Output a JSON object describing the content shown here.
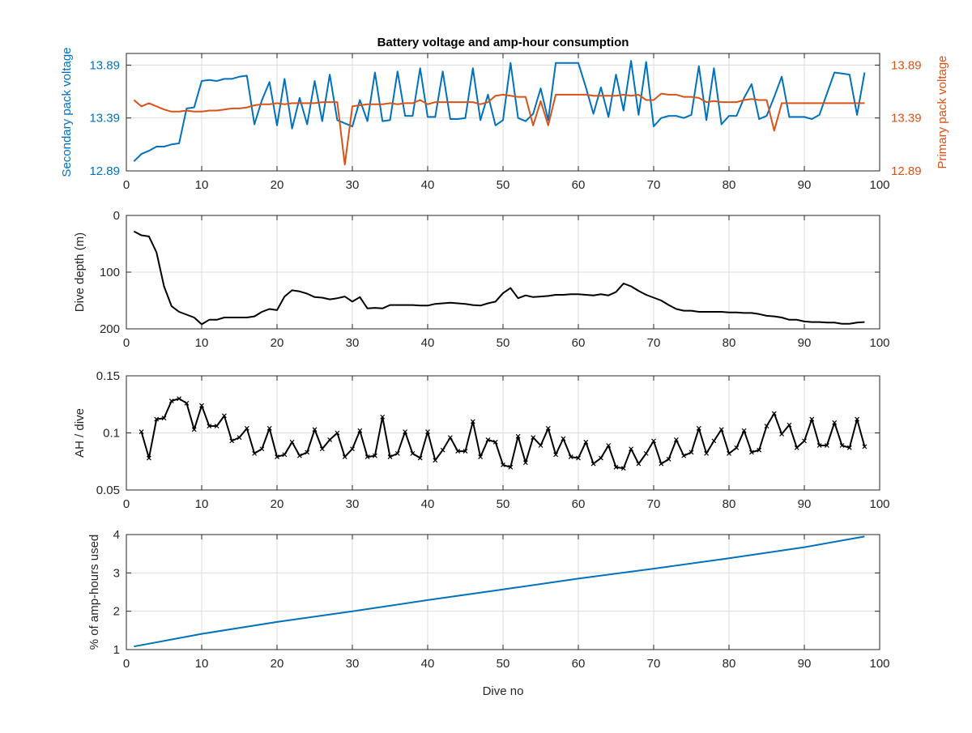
{
  "figure": {
    "title": "Battery voltage and amp-hour consumption"
  },
  "chart_data": [
    {
      "type": "line",
      "title": "Battery voltage and amp-hour consumption",
      "xlabel": "",
      "xlim": [
        0,
        100
      ],
      "xticks": [
        0,
        10,
        20,
        30,
        40,
        50,
        60,
        70,
        80,
        90,
        100
      ],
      "grid": true,
      "y_left": {
        "label": "Secondary pack voltage",
        "ylim": [
          12.89,
          14.0
        ],
        "ticks": [
          12.89,
          13.39,
          13.89
        ],
        "tick_labels": [
          "12.89",
          "13.39",
          "13.89"
        ],
        "color": "#0072BD"
      },
      "y_right": {
        "label": "Primary pack voltage",
        "ylim": [
          12.89,
          14.0
        ],
        "ticks": [
          12.89,
          13.39,
          13.89
        ],
        "tick_labels": [
          "12.89",
          "13.39",
          "13.89"
        ],
        "color": "#D95319"
      },
      "series": [
        {
          "axis": "left",
          "color": "#0072BD",
          "x": [
            1,
            2,
            3,
            4,
            5,
            6,
            7,
            8,
            9,
            10,
            11,
            12,
            13,
            14,
            15,
            16,
            17,
            18,
            19,
            20,
            21,
            22,
            23,
            24,
            25,
            26,
            27,
            28,
            29,
            30,
            31,
            32,
            33,
            34,
            35,
            36,
            37,
            38,
            39,
            40,
            41,
            42,
            43,
            44,
            45,
            46,
            47,
            48,
            49,
            50,
            51,
            52,
            53,
            54,
            55,
            56,
            57,
            58,
            59,
            60,
            61,
            62,
            63,
            64,
            65,
            66,
            67,
            68,
            69,
            70,
            71,
            72,
            73,
            74,
            75,
            76,
            77,
            78,
            79,
            80,
            81,
            82,
            83,
            84,
            85,
            86,
            87,
            88,
            89,
            90,
            91,
            92,
            93,
            94,
            95,
            96,
            97,
            98
          ],
          "y": [
            12.98,
            13.05,
            13.08,
            13.12,
            13.12,
            13.14,
            13.15,
            13.48,
            13.49,
            13.74,
            13.75,
            13.74,
            13.76,
            13.76,
            13.78,
            13.79,
            13.33,
            13.56,
            13.73,
            13.32,
            13.76,
            13.29,
            13.58,
            13.33,
            13.74,
            13.36,
            13.8,
            13.37,
            13.34,
            13.31,
            13.56,
            13.36,
            13.82,
            13.36,
            13.37,
            13.83,
            13.41,
            13.41,
            13.86,
            13.4,
            13.4,
            13.83,
            13.38,
            13.38,
            13.39,
            13.86,
            13.37,
            13.61,
            13.32,
            13.37,
            13.91,
            13.39,
            13.36,
            13.43,
            13.67,
            13.37,
            13.91,
            13.91,
            13.91,
            13.91,
            13.68,
            13.43,
            13.68,
            13.4,
            13.8,
            13.46,
            13.93,
            13.42,
            13.92,
            13.31,
            13.39,
            13.41,
            13.41,
            13.39,
            13.42,
            13.88,
            13.37,
            13.86,
            13.33,
            13.41,
            13.41,
            13.58,
            13.71,
            13.38,
            13.41,
            13.59,
            13.78,
            13.4,
            13.4,
            13.4,
            13.38,
            13.42,
            13.62,
            13.82,
            13.81,
            13.8,
            13.42,
            13.82
          ]
        },
        {
          "axis": "right",
          "color": "#D95319",
          "x": [
            1,
            2,
            3,
            4,
            5,
            6,
            7,
            8,
            9,
            10,
            11,
            12,
            13,
            14,
            15,
            16,
            17,
            18,
            19,
            20,
            21,
            22,
            23,
            24,
            25,
            26,
            27,
            28,
            29,
            30,
            31,
            32,
            33,
            34,
            35,
            36,
            37,
            38,
            39,
            40,
            41,
            42,
            43,
            44,
            45,
            46,
            47,
            48,
            49,
            50,
            51,
            52,
            53,
            54,
            55,
            56,
            57,
            58,
            59,
            60,
            61,
            62,
            63,
            64,
            65,
            66,
            67,
            68,
            69,
            70,
            71,
            72,
            73,
            74,
            75,
            76,
            77,
            78,
            79,
            80,
            81,
            82,
            83,
            84,
            85,
            86,
            87,
            88,
            89,
            90,
            91,
            92,
            93,
            94,
            95,
            96,
            97,
            98
          ],
          "y": [
            13.56,
            13.5,
            13.53,
            13.5,
            13.47,
            13.45,
            13.45,
            13.46,
            13.45,
            13.45,
            13.46,
            13.46,
            13.47,
            13.48,
            13.48,
            13.49,
            13.51,
            13.52,
            13.52,
            13.53,
            13.52,
            13.53,
            13.53,
            13.53,
            13.53,
            13.54,
            13.54,
            13.54,
            12.95,
            13.5,
            13.51,
            13.52,
            13.52,
            13.52,
            13.53,
            13.52,
            13.53,
            13.53,
            13.56,
            13.52,
            13.54,
            13.54,
            13.54,
            13.54,
            13.54,
            13.54,
            13.52,
            13.54,
            13.6,
            13.61,
            13.6,
            13.59,
            13.59,
            13.32,
            13.55,
            13.32,
            13.61,
            13.61,
            13.61,
            13.61,
            13.61,
            13.6,
            13.6,
            13.6,
            13.6,
            13.61,
            13.6,
            13.61,
            13.56,
            13.56,
            13.62,
            13.61,
            13.61,
            13.59,
            13.59,
            13.58,
            13.54,
            13.55,
            13.54,
            13.54,
            13.54,
            13.56,
            13.57,
            13.56,
            13.56,
            13.27,
            13.53,
            13.53,
            13.53,
            13.53,
            13.53,
            13.53,
            13.53,
            13.53,
            13.53,
            13.53,
            13.53,
            13.53
          ]
        }
      ]
    },
    {
      "type": "line",
      "xlabel": "",
      "ylabel": "Dive depth (m)",
      "xlim": [
        0,
        100
      ],
      "ylim": [
        0,
        200
      ],
      "y_reversed": true,
      "xticks": [
        0,
        10,
        20,
        30,
        40,
        50,
        60,
        70,
        80,
        90,
        100
      ],
      "yticks": [
        0,
        100,
        200
      ],
      "grid": true,
      "series": [
        {
          "color": "#000000",
          "x": [
            1,
            2,
            3,
            4,
            5,
            6,
            7,
            8,
            9,
            10,
            11,
            12,
            13,
            14,
            15,
            16,
            17,
            18,
            19,
            20,
            21,
            22,
            23,
            24,
            25,
            26,
            27,
            28,
            29,
            30,
            31,
            32,
            33,
            34,
            35,
            36,
            37,
            38,
            39,
            40,
            41,
            42,
            43,
            44,
            45,
            46,
            47,
            48,
            49,
            50,
            51,
            52,
            53,
            54,
            55,
            56,
            57,
            58,
            59,
            60,
            61,
            62,
            63,
            64,
            65,
            66,
            67,
            68,
            69,
            70,
            71,
            72,
            73,
            74,
            75,
            76,
            77,
            78,
            79,
            80,
            81,
            82,
            83,
            84,
            85,
            86,
            87,
            88,
            89,
            90,
            91,
            92,
            93,
            94,
            95,
            96,
            97,
            98
          ],
          "y": [
            28,
            35,
            37,
            65,
            125,
            160,
            170,
            175,
            180,
            192,
            184,
            184,
            180,
            180,
            180,
            180,
            178,
            170,
            165,
            167,
            143,
            132,
            134,
            138,
            144,
            145,
            148,
            146,
            143,
            152,
            144,
            164,
            163,
            164,
            158,
            158,
            158,
            158,
            159,
            159,
            156,
            155,
            154,
            155,
            156,
            158,
            159,
            155,
            152,
            137,
            128,
            146,
            141,
            144,
            143,
            142,
            140,
            140,
            139,
            139,
            140,
            141,
            139,
            141,
            135,
            120,
            125,
            133,
            140,
            145,
            150,
            158,
            165,
            168,
            168,
            170,
            170,
            170,
            170,
            171,
            171,
            172,
            172,
            174,
            177,
            178,
            180,
            184,
            184,
            187,
            188,
            188,
            189,
            189,
            191,
            191,
            189,
            188
          ]
        }
      ]
    },
    {
      "type": "line",
      "xlabel": "",
      "ylabel": "AH / dive",
      "xlim": [
        0,
        100
      ],
      "ylim": [
        0.05,
        0.15
      ],
      "xticks": [
        0,
        10,
        20,
        30,
        40,
        50,
        60,
        70,
        80,
        90,
        100
      ],
      "yticks": [
        0.05,
        0.1,
        0.15
      ],
      "ytick_labels": [
        "0.05",
        "0.1",
        "0.15"
      ],
      "grid": true,
      "marker": "x",
      "series": [
        {
          "color": "#000000",
          "x": [
            2,
            3,
            4,
            5,
            6,
            7,
            8,
            9,
            10,
            11,
            12,
            13,
            14,
            15,
            16,
            17,
            18,
            19,
            20,
            21,
            22,
            23,
            24,
            25,
            26,
            27,
            28,
            29,
            30,
            31,
            32,
            33,
            34,
            35,
            36,
            37,
            38,
            39,
            40,
            41,
            42,
            43,
            44,
            45,
            46,
            47,
            48,
            49,
            50,
            51,
            52,
            53,
            54,
            55,
            56,
            57,
            58,
            59,
            60,
            61,
            62,
            63,
            64,
            65,
            66,
            67,
            68,
            69,
            70,
            71,
            72,
            73,
            74,
            75,
            76,
            77,
            78,
            79,
            80,
            81,
            82,
            83,
            84,
            85,
            86,
            87,
            88,
            89,
            90,
            91,
            92,
            93,
            94,
            95,
            96,
            97,
            98
          ],
          "y": [
            0.101,
            0.078,
            0.112,
            0.113,
            0.128,
            0.13,
            0.126,
            0.103,
            0.124,
            0.106,
            0.106,
            0.115,
            0.093,
            0.096,
            0.104,
            0.082,
            0.086,
            0.104,
            0.079,
            0.081,
            0.092,
            0.08,
            0.083,
            0.103,
            0.086,
            0.094,
            0.1,
            0.079,
            0.086,
            0.102,
            0.079,
            0.08,
            0.114,
            0.079,
            0.082,
            0.101,
            0.082,
            0.078,
            0.101,
            0.076,
            0.085,
            0.096,
            0.084,
            0.084,
            0.11,
            0.079,
            0.094,
            0.092,
            0.072,
            0.07,
            0.097,
            0.074,
            0.096,
            0.089,
            0.104,
            0.081,
            0.095,
            0.079,
            0.078,
            0.092,
            0.073,
            0.078,
            0.089,
            0.07,
            0.069,
            0.086,
            0.073,
            0.082,
            0.093,
            0.073,
            0.077,
            0.094,
            0.08,
            0.083,
            0.104,
            0.082,
            0.093,
            0.103,
            0.082,
            0.087,
            0.102,
            0.083,
            0.085,
            0.106,
            0.117,
            0.099,
            0.107,
            0.087,
            0.093,
            0.112,
            0.089,
            0.089,
            0.109,
            0.089,
            0.087,
            0.112,
            0.088
          ]
        }
      ]
    },
    {
      "type": "line",
      "xlabel": "Dive no",
      "ylabel": "% of amp-hours used",
      "xlim": [
        0,
        100
      ],
      "ylim": [
        1,
        4
      ],
      "xticks": [
        0,
        10,
        20,
        30,
        40,
        50,
        60,
        70,
        80,
        90,
        100
      ],
      "yticks": [
        1,
        2,
        3,
        4
      ],
      "grid": true,
      "series": [
        {
          "color": "#0072BD",
          "x": [
            1,
            10,
            20,
            30,
            40,
            50,
            60,
            70,
            80,
            90,
            98
          ],
          "y": [
            1.08,
            1.41,
            1.72,
            2.0,
            2.29,
            2.57,
            2.85,
            3.11,
            3.38,
            3.67,
            3.95
          ]
        }
      ]
    }
  ]
}
